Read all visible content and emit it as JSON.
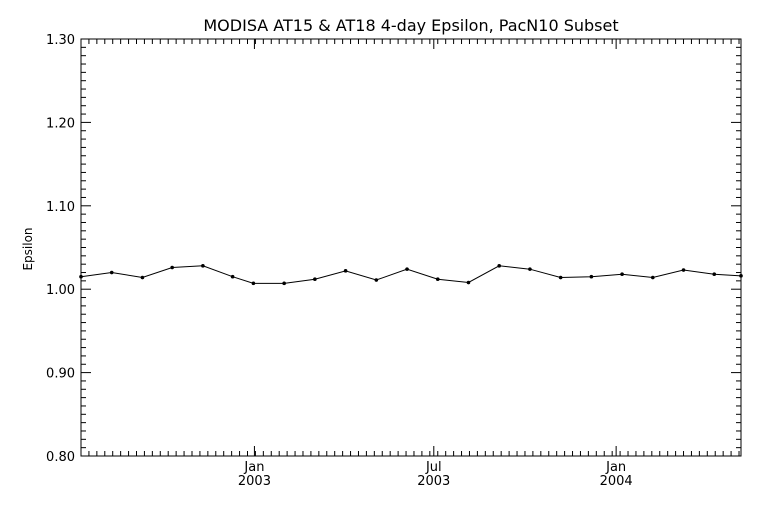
{
  "chart_data": {
    "type": "line",
    "title": "MODISA AT15 & AT18 4-day Epsilon, PacN10 Subset",
    "xlabel": "",
    "ylabel": "Epsilon",
    "ylim": [
      0.8,
      1.3
    ],
    "xlim": [
      "2002-07-10",
      "2004-05-06"
    ],
    "yticks": [
      "0.80",
      "0.90",
      "1.00",
      "1.10",
      "1.20",
      "1.30"
    ],
    "xticks": [
      {
        "date": "2003-01-01",
        "month": "Jan",
        "year": "2003"
      },
      {
        "date": "2003-07-01",
        "month": "Jul",
        "year": "2003"
      },
      {
        "date": "2004-01-01",
        "month": "Jan",
        "year": "2004"
      }
    ],
    "grid": false,
    "series": [
      {
        "x": [
          "2002-07-10",
          "2002-08-10",
          "2002-09-10",
          "2002-10-10",
          "2002-11-10",
          "2002-12-10",
          "2002-12-31",
          "2003-01-31",
          "2003-03-03",
          "2003-04-03",
          "2003-05-04",
          "2003-06-04",
          "2003-07-05",
          "2003-08-05",
          "2003-09-05",
          "2003-10-06",
          "2003-11-06",
          "2003-12-07",
          "2004-01-07",
          "2004-02-07",
          "2004-03-09",
          "2004-04-09",
          "2004-05-06"
        ],
        "values": [
          1.015,
          1.02,
          1.014,
          1.026,
          1.028,
          1.015,
          1.007,
          1.007,
          1.012,
          1.022,
          1.011,
          1.024,
          1.012,
          1.008,
          1.028,
          1.024,
          1.014,
          1.015,
          1.018,
          1.014,
          1.023,
          1.018,
          1.016
        ]
      }
    ]
  }
}
